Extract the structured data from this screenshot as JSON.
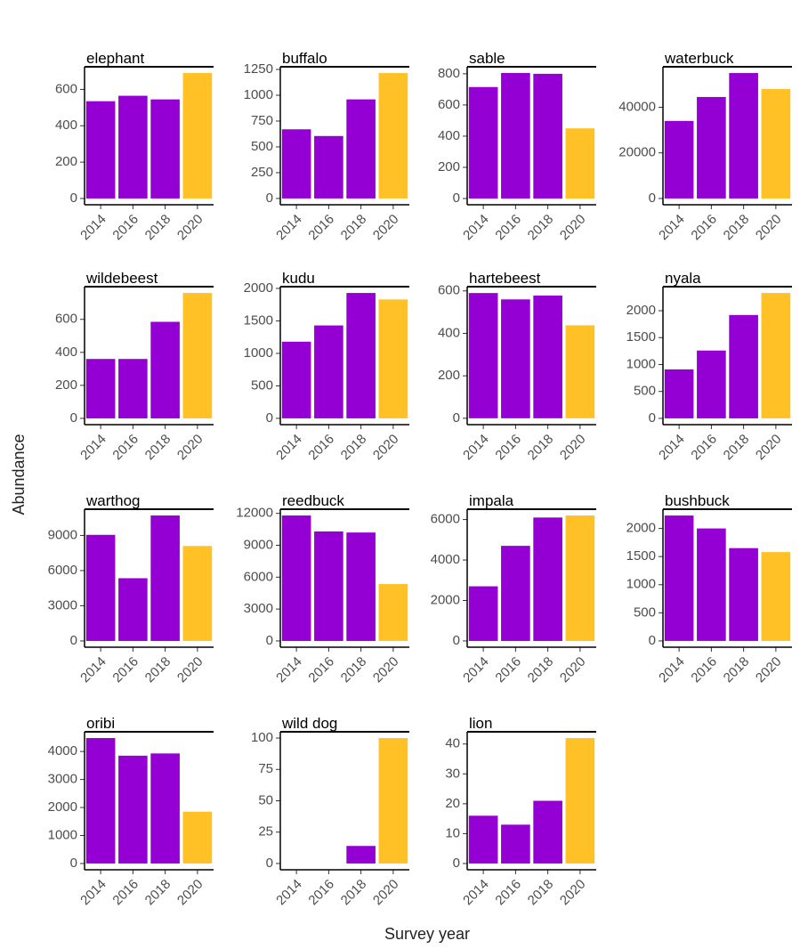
{
  "axis_labels": {
    "x": "Survey year",
    "y": "Abundance"
  },
  "chart_data": [
    {
      "type": "bar",
      "title": "elephant",
      "categories": [
        "2014",
        "2016",
        "2018",
        "2020"
      ],
      "values": [
        535,
        565,
        545,
        690
      ],
      "colors": [
        "#9400d3",
        "#9400d3",
        "#9400d3",
        "#ffc125"
      ],
      "ylim": [
        -34.5,
        724.5
      ],
      "yticks": [
        0,
        200,
        400,
        600
      ]
    },
    {
      "type": "bar",
      "title": "buffalo",
      "categories": [
        "2014",
        "2016",
        "2018",
        "2020"
      ],
      "values": [
        670,
        605,
        960,
        1215
      ],
      "colors": [
        "#9400d3",
        "#9400d3",
        "#9400d3",
        "#ffc125"
      ],
      "ylim": [
        -61,
        1276
      ],
      "yticks": [
        0,
        250,
        500,
        750,
        1000,
        1250
      ]
    },
    {
      "type": "bar",
      "title": "sable",
      "categories": [
        "2014",
        "2016",
        "2018",
        "2020"
      ],
      "values": [
        715,
        805,
        800,
        450
      ],
      "colors": [
        "#9400d3",
        "#9400d3",
        "#9400d3",
        "#ffc125"
      ],
      "ylim": [
        -40,
        845
      ],
      "yticks": [
        0,
        200,
        400,
        600,
        800
      ]
    },
    {
      "type": "bar",
      "title": "waterbuck",
      "categories": [
        "2014",
        "2016",
        "2018",
        "2020"
      ],
      "values": [
        34000,
        44500,
        55000,
        48000
      ],
      "colors": [
        "#9400d3",
        "#9400d3",
        "#9400d3",
        "#ffc125"
      ],
      "ylim": [
        -2750,
        57750
      ],
      "yticks": [
        0,
        20000,
        40000
      ]
    },
    {
      "type": "bar",
      "title": "wildebeest",
      "categories": [
        "2014",
        "2016",
        "2018",
        "2020"
      ],
      "values": [
        360,
        360,
        585,
        760
      ],
      "colors": [
        "#9400d3",
        "#9400d3",
        "#9400d3",
        "#ffc125"
      ],
      "ylim": [
        -38,
        798
      ],
      "yticks": [
        0,
        200,
        400,
        600
      ]
    },
    {
      "type": "bar",
      "title": "kudu",
      "categories": [
        "2014",
        "2016",
        "2018",
        "2020"
      ],
      "values": [
        1180,
        1430,
        1930,
        1830
      ],
      "colors": [
        "#9400d3",
        "#9400d3",
        "#9400d3",
        "#ffc125"
      ],
      "ylim": [
        -97,
        2027
      ],
      "yticks": [
        0,
        500,
        1000,
        1500,
        2000
      ]
    },
    {
      "type": "bar",
      "title": "hartebeest",
      "categories": [
        "2014",
        "2016",
        "2018",
        "2020"
      ],
      "values": [
        590,
        560,
        578,
        438
      ],
      "colors": [
        "#9400d3",
        "#9400d3",
        "#9400d3",
        "#ffc125"
      ],
      "ylim": [
        -30,
        620
      ],
      "yticks": [
        0,
        200,
        400,
        600
      ]
    },
    {
      "type": "bar",
      "title": "nyala",
      "categories": [
        "2014",
        "2016",
        "2018",
        "2020"
      ],
      "values": [
        910,
        1260,
        1920,
        2330
      ],
      "colors": [
        "#9400d3",
        "#9400d3",
        "#9400d3",
        "#ffc125"
      ],
      "ylim": [
        -117,
        2447
      ],
      "yticks": [
        0,
        500,
        1000,
        1500,
        2000
      ]
    },
    {
      "type": "bar",
      "title": "warthog",
      "categories": [
        "2014",
        "2016",
        "2018",
        "2020"
      ],
      "values": [
        9050,
        5350,
        10700,
        8100
      ],
      "colors": [
        "#9400d3",
        "#9400d3",
        "#9400d3",
        "#ffc125"
      ],
      "ylim": [
        -535,
        11235
      ],
      "yticks": [
        0,
        3000,
        6000,
        9000
      ]
    },
    {
      "type": "bar",
      "title": "reedbuck",
      "categories": [
        "2014",
        "2016",
        "2018",
        "2020"
      ],
      "values": [
        11800,
        10300,
        10200,
        5350
      ],
      "colors": [
        "#9400d3",
        "#9400d3",
        "#9400d3",
        "#ffc125"
      ],
      "ylim": [
        -590,
        12390
      ],
      "yticks": [
        0,
        3000,
        6000,
        9000,
        12000
      ]
    },
    {
      "type": "bar",
      "title": "impala",
      "categories": [
        "2014",
        "2016",
        "2018",
        "2020"
      ],
      "values": [
        2700,
        4700,
        6100,
        6200
      ],
      "colors": [
        "#9400d3",
        "#9400d3",
        "#9400d3",
        "#ffc125"
      ],
      "ylim": [
        -310,
        6510
      ],
      "yticks": [
        0,
        2000,
        4000,
        6000
      ]
    },
    {
      "type": "bar",
      "title": "bushbuck",
      "categories": [
        "2014",
        "2016",
        "2018",
        "2020"
      ],
      "values": [
        2230,
        2000,
        1650,
        1580
      ],
      "colors": [
        "#9400d3",
        "#9400d3",
        "#9400d3",
        "#ffc125"
      ],
      "ylim": [
        -112,
        2342
      ],
      "yticks": [
        0,
        500,
        1000,
        1500,
        2000
      ]
    },
    {
      "type": "bar",
      "title": "oribi",
      "categories": [
        "2014",
        "2016",
        "2018",
        "2020"
      ],
      "values": [
        4480,
        3850,
        3930,
        1850
      ],
      "colors": [
        "#9400d3",
        "#9400d3",
        "#9400d3",
        "#ffc125"
      ],
      "ylim": [
        -224,
        4704
      ],
      "yticks": [
        0,
        1000,
        2000,
        3000,
        4000
      ]
    },
    {
      "type": "bar",
      "title": "wild dog",
      "categories": [
        "2014",
        "2016",
        "2018",
        "2020"
      ],
      "values": [
        0,
        0,
        14,
        100
      ],
      "colors": [
        "#9400d3",
        "#9400d3",
        "#9400d3",
        "#ffc125"
      ],
      "ylim": [
        -5,
        105
      ],
      "yticks": [
        0,
        25,
        50,
        75,
        100
      ]
    },
    {
      "type": "bar",
      "title": "lion",
      "categories": [
        "2014",
        "2016",
        "2018",
        "2020"
      ],
      "values": [
        16,
        13,
        21,
        42
      ],
      "colors": [
        "#9400d3",
        "#9400d3",
        "#9400d3",
        "#ffc125"
      ],
      "ylim": [
        -2.1,
        44.1
      ],
      "yticks": [
        0,
        10,
        20,
        30,
        40
      ]
    }
  ]
}
